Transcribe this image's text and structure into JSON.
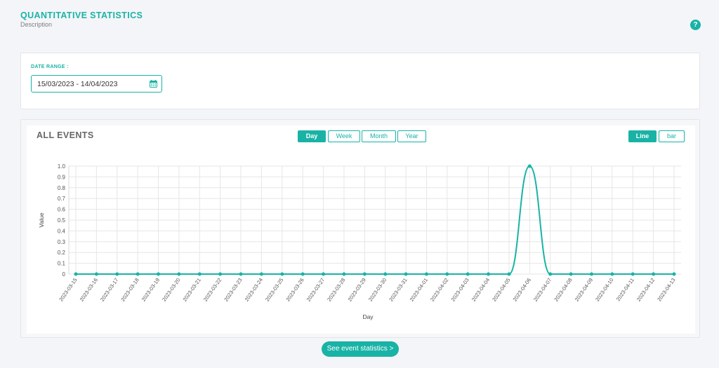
{
  "header": {
    "title": "QUANTITATIVE STATISTICS",
    "description": "Description",
    "help_icon": "?"
  },
  "date_range": {
    "label": "DATE RANGE :",
    "value": "15/03/2023 - 14/04/2023",
    "icon": "calendar-icon"
  },
  "events": {
    "title": "ALL EVENTS",
    "period_tabs": [
      "Day",
      "Week",
      "Month",
      "Year"
    ],
    "active_period": "Day",
    "chart_types": [
      "Line",
      "bar"
    ],
    "active_chart_type": "Line"
  },
  "cta_label": "See event statistics >",
  "colors": {
    "accent": "#19b3a6"
  },
  "chart_data": {
    "type": "line",
    "xlabel": "Day",
    "ylabel": "Value",
    "ylim": [
      0,
      1
    ],
    "yticks": [
      "0",
      "0.1",
      "0.2",
      "0.3",
      "0.4",
      "0.5",
      "0.6",
      "0.7",
      "0.8",
      "0.9",
      "1.0"
    ],
    "grid": true,
    "x": [
      "2023-03-15",
      "2023-03-16",
      "2023-03-17",
      "2023-03-18",
      "2023-03-19",
      "2023-03-20",
      "2023-03-21",
      "2023-03-22",
      "2023-03-23",
      "2023-03-24",
      "2023-03-25",
      "2023-03-26",
      "2023-03-27",
      "2023-03-28",
      "2023-03-29",
      "2023-03-30",
      "2023-03-31",
      "2023-04-01",
      "2023-04-02",
      "2023-04-03",
      "2023-04-04",
      "2023-04-05",
      "2023-04-06",
      "2023-04-07",
      "2023-04-08",
      "2023-04-09",
      "2023-04-10",
      "2023-04-11",
      "2023-04-12",
      "2023-04-13"
    ],
    "series": [
      {
        "values": [
          0,
          0,
          0,
          0,
          0,
          0,
          0,
          0,
          0,
          0,
          0,
          0,
          0,
          0,
          0,
          0,
          0,
          0,
          0,
          0,
          0,
          0,
          1,
          0,
          0,
          0,
          0,
          0,
          0,
          0
        ]
      }
    ]
  }
}
